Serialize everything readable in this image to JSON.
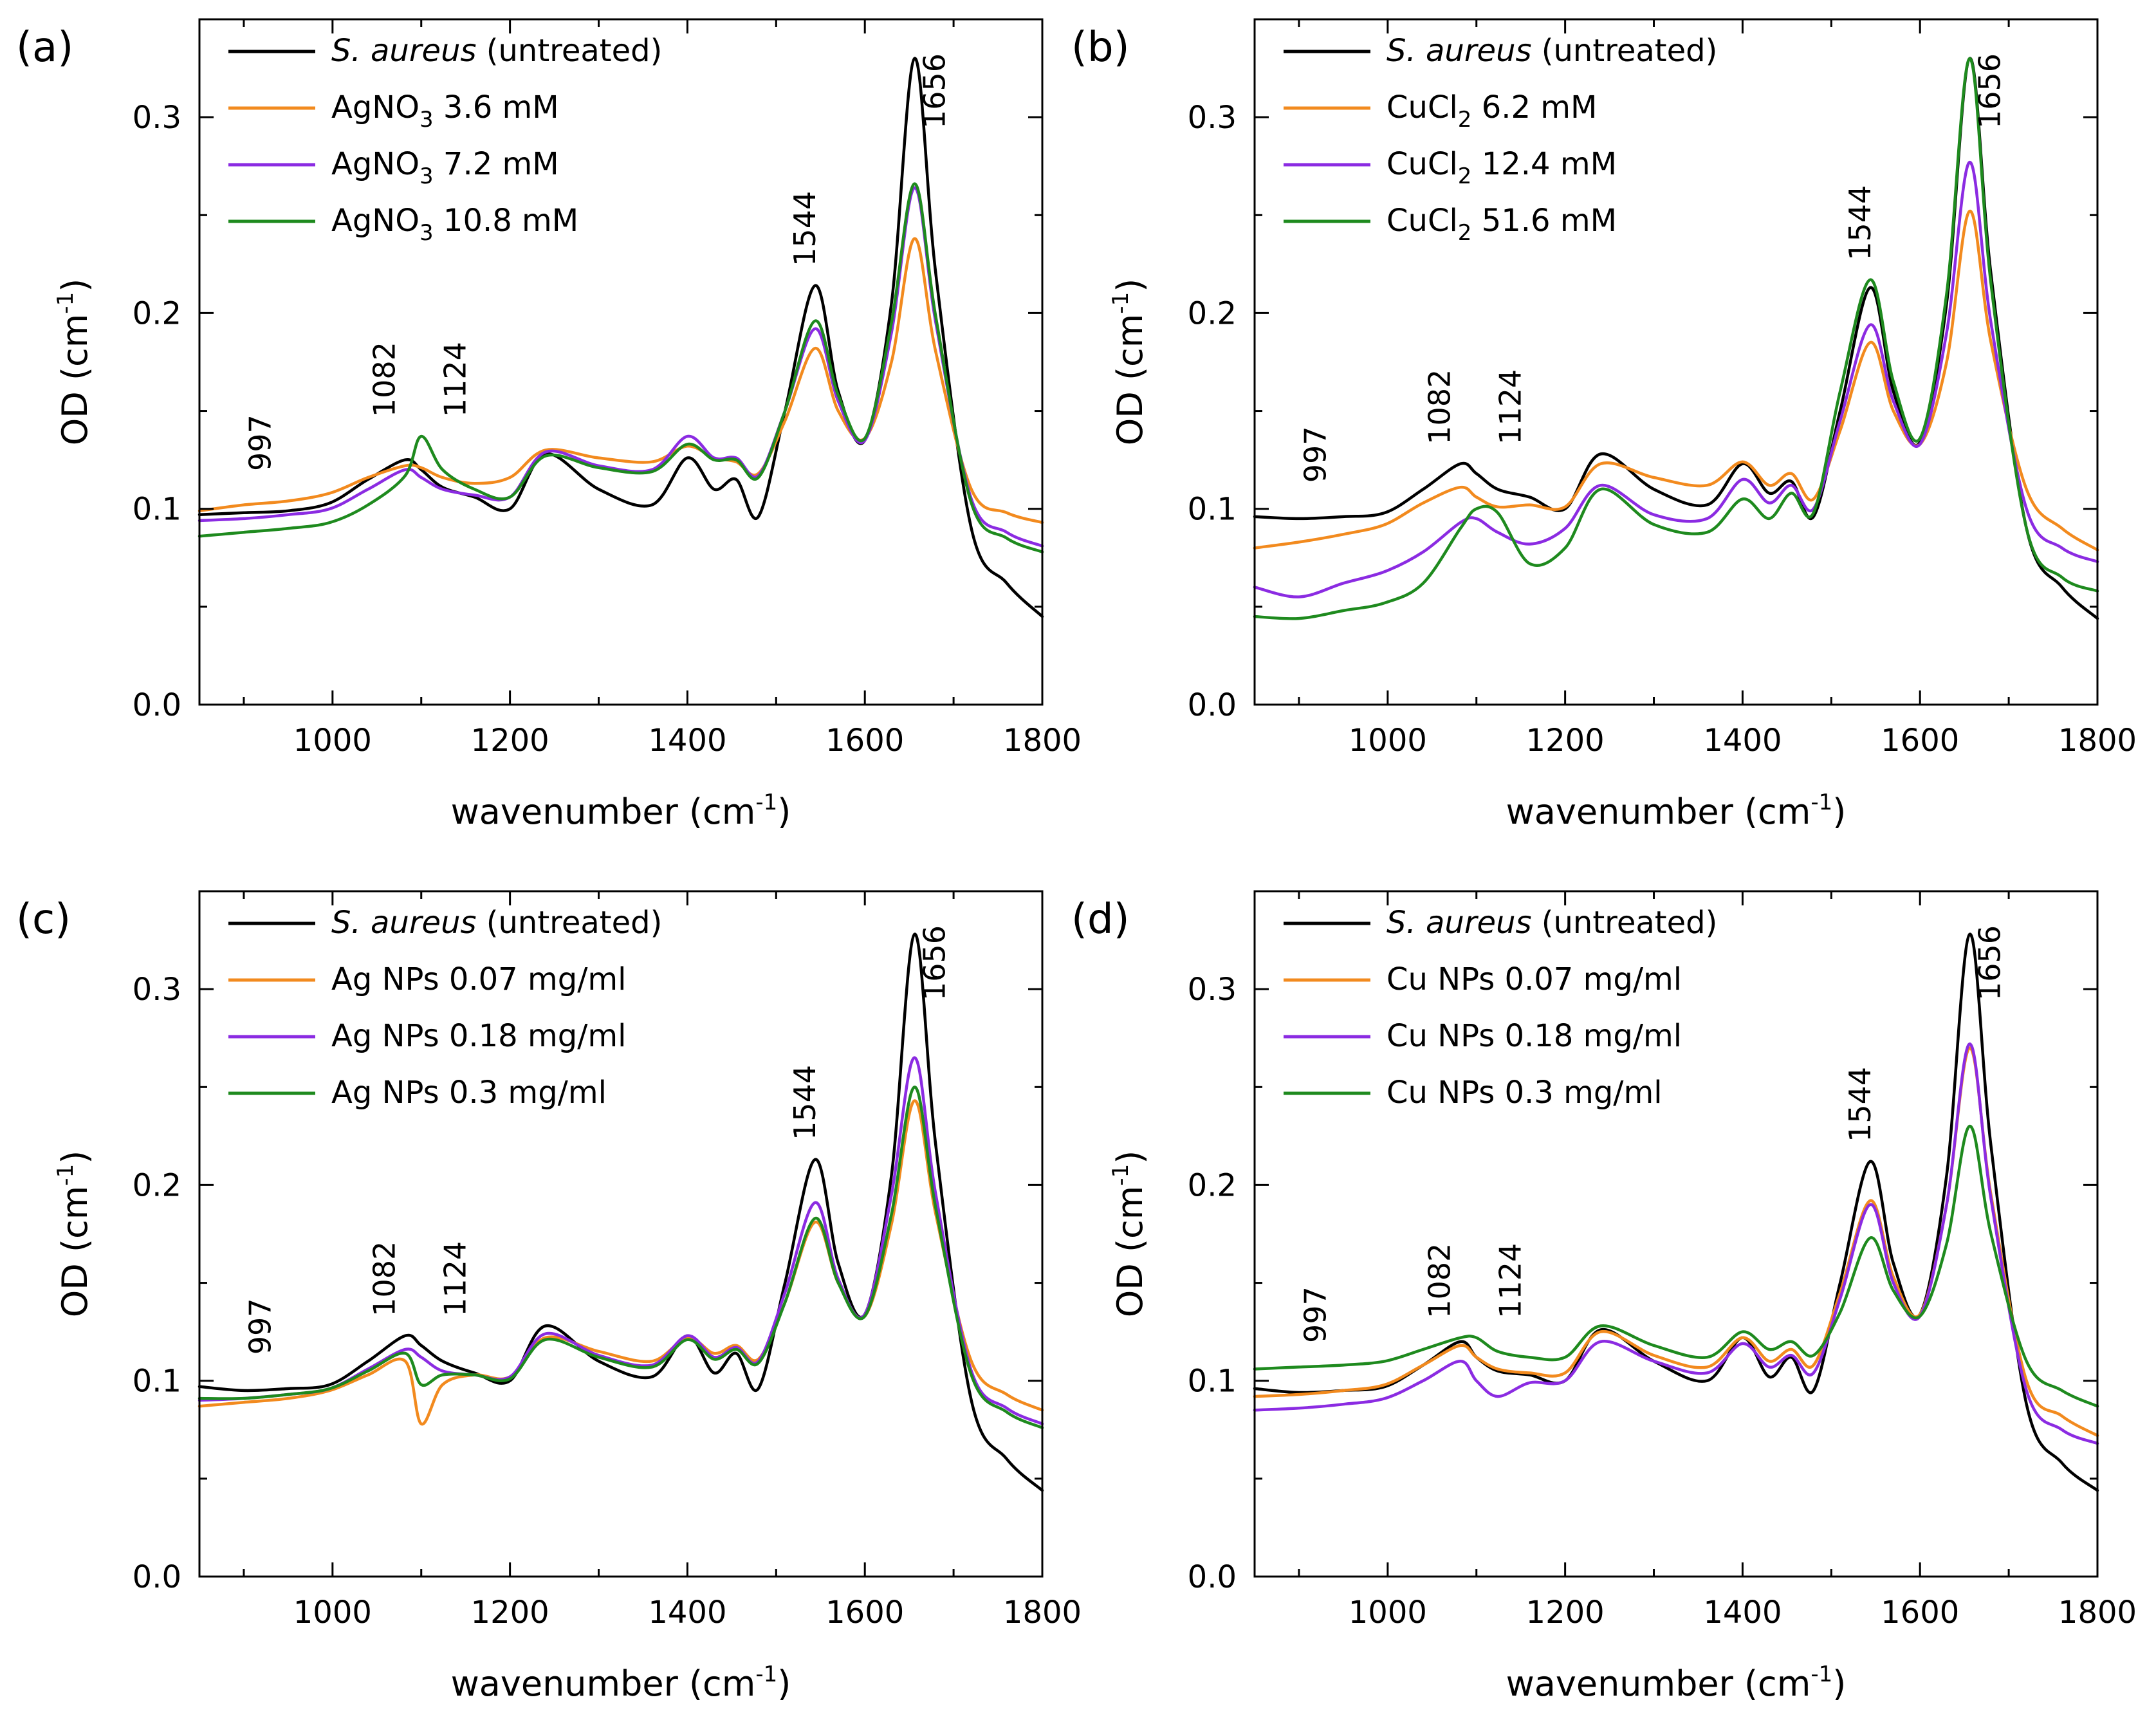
{
  "figure": {
    "colors": {
      "untreated": "#000000",
      "low": "#f28a1e",
      "mid": "#8b2be2",
      "high": "#1e8a1e"
    }
  },
  "chart_data": [
    {
      "panel_label": "(a)",
      "type": "line",
      "xlabel": "wavenumber (cm",
      "xlabel_sup": "-1",
      "xlabel_close": ")",
      "ylabel": "OD (cm",
      "ylabel_sup": "-1",
      "ylabel_close": ")",
      "xlim": [
        850,
        1800
      ],
      "ylim": [
        0,
        0.35
      ],
      "xticks": [
        "1000",
        "1200",
        "1400",
        "1600",
        "1800"
      ],
      "yticks": [
        "0.0",
        "0.1",
        "0.2",
        "0.3"
      ],
      "annotations": [
        "997",
        "1082",
        "1124",
        "1544",
        "1656"
      ],
      "x": [
        850,
        900,
        950,
        997,
        1040,
        1082,
        1100,
        1124,
        1160,
        1200,
        1240,
        1300,
        1360,
        1400,
        1430,
        1455,
        1480,
        1510,
        1544,
        1570,
        1600,
        1630,
        1656,
        1680,
        1720,
        1760,
        1800
      ],
      "series": [
        {
          "name": "S. aureus (untreated)",
          "name_italic": "S. aureus",
          "name_rest": " (untreated)",
          "color": "#000000",
          "values": [
            0.097,
            0.098,
            0.099,
            0.103,
            0.115,
            0.125,
            0.12,
            0.111,
            0.106,
            0.1,
            0.128,
            0.11,
            0.102,
            0.126,
            0.11,
            0.115,
            0.096,
            0.15,
            0.214,
            0.16,
            0.135,
            0.205,
            0.33,
            0.22,
            0.09,
            0.062,
            0.045
          ]
        },
        {
          "name": "AgNO3 3.6 mM",
          "name_main": "AgNO",
          "name_sub": "3",
          "name_rest": " 3.6 mM",
          "color": "#f28a1e",
          "values": [
            0.099,
            0.102,
            0.104,
            0.108,
            0.116,
            0.122,
            0.121,
            0.116,
            0.113,
            0.116,
            0.13,
            0.126,
            0.124,
            0.132,
            0.126,
            0.124,
            0.118,
            0.145,
            0.182,
            0.15,
            0.136,
            0.175,
            0.238,
            0.18,
            0.11,
            0.098,
            0.093
          ]
        },
        {
          "name": "AgNO3 7.2 mM",
          "name_main": "AgNO",
          "name_sub": "3",
          "name_rest": " 7.2 mM",
          "color": "#8b2be2",
          "values": [
            0.094,
            0.095,
            0.097,
            0.1,
            0.11,
            0.12,
            0.116,
            0.11,
            0.107,
            0.106,
            0.129,
            0.122,
            0.12,
            0.137,
            0.126,
            0.126,
            0.117,
            0.15,
            0.192,
            0.155,
            0.135,
            0.19,
            0.264,
            0.195,
            0.105,
            0.088,
            0.081
          ]
        },
        {
          "name": "AgNO3 10.8 mM",
          "name_main": "AgNO",
          "name_sub": "3",
          "name_rest": " 10.8 mM",
          "color": "#1e8a1e",
          "values": [
            0.086,
            0.088,
            0.09,
            0.093,
            0.102,
            0.117,
            0.137,
            0.12,
            0.11,
            0.106,
            0.127,
            0.121,
            0.119,
            0.133,
            0.125,
            0.125,
            0.116,
            0.15,
            0.196,
            0.158,
            0.136,
            0.195,
            0.266,
            0.198,
            0.103,
            0.085,
            0.078
          ]
        }
      ]
    },
    {
      "panel_label": "(b)",
      "type": "line",
      "xlabel": "wavenumber (cm",
      "xlabel_sup": "-1",
      "xlabel_close": ")",
      "ylabel": "OD (cm",
      "ylabel_sup": "-1",
      "ylabel_close": ")",
      "xlim": [
        850,
        1800
      ],
      "ylim": [
        0,
        0.35
      ],
      "xticks": [
        "1000",
        "1200",
        "1400",
        "1600",
        "1800"
      ],
      "yticks": [
        "0.0",
        "0.1",
        "0.2",
        "0.3"
      ],
      "annotations": [
        "997",
        "1082",
        "1124",
        "1544",
        "1656"
      ],
      "x": [
        850,
        900,
        950,
        997,
        1040,
        1082,
        1100,
        1124,
        1160,
        1200,
        1240,
        1300,
        1360,
        1400,
        1430,
        1455,
        1480,
        1510,
        1544,
        1570,
        1600,
        1630,
        1656,
        1680,
        1720,
        1760,
        1800
      ],
      "series": [
        {
          "name": "S. aureus (untreated)",
          "name_italic": "S. aureus",
          "name_rest": " (untreated)",
          "color": "#000000",
          "values": [
            0.096,
            0.095,
            0.096,
            0.098,
            0.11,
            0.123,
            0.118,
            0.11,
            0.106,
            0.1,
            0.128,
            0.11,
            0.102,
            0.123,
            0.108,
            0.114,
            0.096,
            0.15,
            0.213,
            0.16,
            0.134,
            0.205,
            0.33,
            0.22,
            0.09,
            0.06,
            0.044
          ]
        },
        {
          "name": "CuCl2 6.2 mM",
          "name_main": "CuCl",
          "name_sub": "2",
          "name_rest": " 6.2 mM",
          "color": "#f28a1e",
          "values": [
            0.08,
            0.083,
            0.087,
            0.092,
            0.103,
            0.111,
            0.106,
            0.101,
            0.102,
            0.101,
            0.123,
            0.116,
            0.112,
            0.124,
            0.112,
            0.118,
            0.105,
            0.14,
            0.185,
            0.15,
            0.133,
            0.175,
            0.252,
            0.185,
            0.11,
            0.09,
            0.079
          ]
        },
        {
          "name": "CuCl2 12.4 mM",
          "name_main": "CuCl",
          "name_sub": "2",
          "name_rest": " 12.4 mM",
          "color": "#8b2be2",
          "values": [
            0.06,
            0.055,
            0.062,
            0.068,
            0.078,
            0.093,
            0.095,
            0.088,
            0.082,
            0.09,
            0.112,
            0.097,
            0.095,
            0.115,
            0.103,
            0.112,
            0.1,
            0.145,
            0.194,
            0.155,
            0.133,
            0.19,
            0.277,
            0.195,
            0.1,
            0.08,
            0.073
          ]
        },
        {
          "name": "CuCl2 51.6 mM",
          "name_main": "CuCl",
          "name_sub": "2",
          "name_rest": " 51.6 mM",
          "color": "#1e8a1e",
          "values": [
            0.045,
            0.044,
            0.048,
            0.052,
            0.062,
            0.09,
            0.1,
            0.098,
            0.072,
            0.08,
            0.11,
            0.092,
            0.088,
            0.105,
            0.095,
            0.108,
            0.098,
            0.16,
            0.217,
            0.165,
            0.136,
            0.21,
            0.33,
            0.215,
            0.09,
            0.065,
            0.058
          ]
        }
      ]
    },
    {
      "panel_label": "(c)",
      "type": "line",
      "xlabel": "wavenumber (cm",
      "xlabel_sup": "-1",
      "xlabel_close": ")",
      "ylabel": "OD (cm",
      "ylabel_sup": "-1",
      "ylabel_close": ")",
      "xlim": [
        850,
        1800
      ],
      "ylim": [
        0,
        0.35
      ],
      "xticks": [
        "1000",
        "1200",
        "1400",
        "1600",
        "1800"
      ],
      "yticks": [
        "0.0",
        "0.1",
        "0.2",
        "0.3"
      ],
      "annotations": [
        "997",
        "1082",
        "1124",
        "1544",
        "1656"
      ],
      "x": [
        850,
        900,
        950,
        997,
        1040,
        1082,
        1100,
        1124,
        1160,
        1200,
        1240,
        1300,
        1360,
        1400,
        1430,
        1455,
        1480,
        1510,
        1544,
        1570,
        1600,
        1630,
        1656,
        1680,
        1720,
        1760,
        1800
      ],
      "series": [
        {
          "name": "S. aureus (untreated)",
          "name_italic": "S. aureus",
          "name_rest": " (untreated)",
          "color": "#000000",
          "values": [
            0.097,
            0.095,
            0.096,
            0.098,
            0.11,
            0.123,
            0.118,
            0.11,
            0.104,
            0.1,
            0.128,
            0.11,
            0.102,
            0.123,
            0.104,
            0.114,
            0.096,
            0.15,
            0.213,
            0.16,
            0.134,
            0.205,
            0.328,
            0.22,
            0.09,
            0.06,
            0.044
          ]
        },
        {
          "name": "Ag NPs 0.07 mg/ml",
          "color": "#f28a1e",
          "values": [
            0.087,
            0.089,
            0.091,
            0.095,
            0.103,
            0.11,
            0.078,
            0.098,
            0.103,
            0.102,
            0.122,
            0.115,
            0.11,
            0.122,
            0.114,
            0.118,
            0.111,
            0.14,
            0.181,
            0.15,
            0.133,
            0.18,
            0.243,
            0.185,
            0.11,
            0.093,
            0.085
          ]
        },
        {
          "name": "Ag NPs 0.18 mg/ml",
          "color": "#8b2be2",
          "values": [
            0.09,
            0.091,
            0.093,
            0.096,
            0.106,
            0.116,
            0.112,
            0.105,
            0.103,
            0.102,
            0.124,
            0.113,
            0.108,
            0.123,
            0.112,
            0.117,
            0.11,
            0.145,
            0.191,
            0.152,
            0.134,
            0.195,
            0.265,
            0.195,
            0.105,
            0.086,
            0.078
          ]
        },
        {
          "name": "Ag NPs 0.3 mg/ml",
          "color": "#1e8a1e",
          "values": [
            0.091,
            0.091,
            0.093,
            0.096,
            0.105,
            0.114,
            0.098,
            0.103,
            0.103,
            0.101,
            0.121,
            0.112,
            0.107,
            0.121,
            0.111,
            0.116,
            0.109,
            0.14,
            0.183,
            0.15,
            0.133,
            0.185,
            0.25,
            0.188,
            0.103,
            0.084,
            0.076
          ]
        }
      ]
    },
    {
      "panel_label": "(d)",
      "type": "line",
      "xlabel": "wavenumber (cm",
      "xlabel_sup": "-1",
      "xlabel_close": ")",
      "ylabel": "OD (cm",
      "ylabel_sup": "-1",
      "ylabel_close": ")",
      "xlim": [
        850,
        1800
      ],
      "ylim": [
        0,
        0.35
      ],
      "xticks": [
        "1000",
        "1200",
        "1400",
        "1600",
        "1800"
      ],
      "yticks": [
        "0.0",
        "0.1",
        "0.2",
        "0.3"
      ],
      "annotations": [
        "997",
        "1082",
        "1124",
        "1544",
        "1656"
      ],
      "x": [
        850,
        900,
        950,
        997,
        1040,
        1082,
        1100,
        1124,
        1160,
        1200,
        1240,
        1300,
        1360,
        1400,
        1430,
        1455,
        1480,
        1510,
        1544,
        1570,
        1600,
        1630,
        1656,
        1680,
        1720,
        1760,
        1800
      ],
      "series": [
        {
          "name": "S. aureus (untreated)",
          "name_italic": "S. aureus",
          "name_rest": " (untreated)",
          "color": "#000000",
          "values": [
            0.096,
            0.094,
            0.095,
            0.097,
            0.108,
            0.12,
            0.112,
            0.105,
            0.103,
            0.1,
            0.126,
            0.11,
            0.1,
            0.122,
            0.102,
            0.112,
            0.095,
            0.15,
            0.212,
            0.16,
            0.134,
            0.205,
            0.328,
            0.22,
            0.088,
            0.058,
            0.044
          ]
        },
        {
          "name": "Cu NPs 0.07 mg/ml",
          "color": "#f28a1e",
          "values": [
            0.092,
            0.093,
            0.095,
            0.098,
            0.108,
            0.118,
            0.112,
            0.106,
            0.104,
            0.104,
            0.125,
            0.113,
            0.107,
            0.122,
            0.11,
            0.116,
            0.108,
            0.145,
            0.192,
            0.153,
            0.134,
            0.19,
            0.27,
            0.195,
            0.1,
            0.082,
            0.072
          ]
        },
        {
          "name": "Cu NPs 0.18 mg/ml",
          "color": "#8b2be2",
          "values": [
            0.085,
            0.086,
            0.088,
            0.091,
            0.1,
            0.11,
            0.1,
            0.092,
            0.099,
            0.1,
            0.12,
            0.11,
            0.104,
            0.119,
            0.107,
            0.113,
            0.104,
            0.142,
            0.19,
            0.15,
            0.133,
            0.19,
            0.272,
            0.193,
            0.095,
            0.075,
            0.068
          ]
        },
        {
          "name": "Cu NPs 0.3 mg/ml",
          "color": "#1e8a1e",
          "values": [
            0.106,
            0.107,
            0.108,
            0.11,
            0.116,
            0.122,
            0.122,
            0.115,
            0.112,
            0.112,
            0.128,
            0.118,
            0.112,
            0.125,
            0.116,
            0.12,
            0.113,
            0.135,
            0.173,
            0.146,
            0.133,
            0.17,
            0.23,
            0.175,
            0.11,
            0.095,
            0.087
          ]
        }
      ]
    }
  ]
}
